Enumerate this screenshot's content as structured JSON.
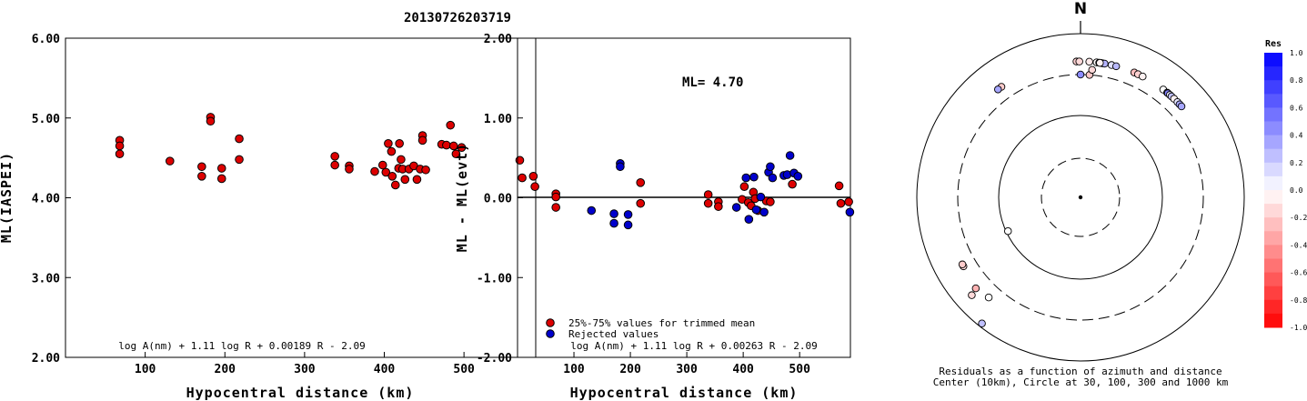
{
  "title": "20130726203719",
  "chart_data": [
    {
      "type": "scatter",
      "ylabel": "ML(IASPEI)",
      "xlabel": "Hypocentral distance (km)",
      "xlim": [
        0,
        590
      ],
      "ylim": [
        2.0,
        6.0
      ],
      "xticks": [
        "100",
        "200",
        "300",
        "400",
        "500"
      ],
      "xtick_values": [
        100,
        200,
        300,
        400,
        500
      ],
      "yticks": [
        "2.00",
        "3.00",
        "4.00",
        "5.00",
        "6.00"
      ],
      "ytick_values": [
        2.0,
        3.0,
        4.0,
        5.0,
        6.0
      ],
      "formula": "log A(nm) + 1.11 log R + 0.00189 R - 2.09",
      "color": "#dd0000",
      "points": [
        [
          68,
          4.72
        ],
        [
          68,
          4.65
        ],
        [
          68,
          4.55
        ],
        [
          131,
          4.46
        ],
        [
          171,
          4.39
        ],
        [
          171,
          4.27
        ],
        [
          182,
          5.01
        ],
        [
          182,
          4.96
        ],
        [
          196,
          4.37
        ],
        [
          196,
          4.24
        ],
        [
          218,
          4.74
        ],
        [
          218,
          4.48
        ],
        [
          338,
          4.52
        ],
        [
          338,
          4.41
        ],
        [
          356,
          4.4
        ],
        [
          356,
          4.36
        ],
        [
          388,
          4.33
        ],
        [
          398,
          4.41
        ],
        [
          402,
          4.32
        ],
        [
          405,
          4.68
        ],
        [
          409,
          4.58
        ],
        [
          410,
          4.27
        ],
        [
          414,
          4.16
        ],
        [
          418,
          4.37
        ],
        [
          419,
          4.68
        ],
        [
          421,
          4.48
        ],
        [
          423,
          4.36
        ],
        [
          426,
          4.23
        ],
        [
          431,
          4.36
        ],
        [
          437,
          4.4
        ],
        [
          441,
          4.23
        ],
        [
          445,
          4.36
        ],
        [
          448,
          4.78
        ],
        [
          448,
          4.72
        ],
        [
          452,
          4.35
        ],
        [
          472,
          4.67
        ],
        [
          478,
          4.66
        ],
        [
          483,
          4.91
        ],
        [
          487,
          4.65
        ],
        [
          490,
          4.55
        ],
        [
          497,
          4.63
        ],
        [
          570,
          4.47
        ],
        [
          573,
          4.25
        ],
        [
          587,
          4.27
        ],
        [
          589,
          4.14
        ]
      ]
    },
    {
      "type": "scatter",
      "ylabel": "ML - ML(evt)",
      "xlabel": "Hypocentral distance (km)",
      "xlim": [
        0,
        590
      ],
      "ylim": [
        -2.0,
        2.0
      ],
      "xticks": [
        "100",
        "200",
        "300",
        "400",
        "500"
      ],
      "xtick_values": [
        100,
        200,
        300,
        400,
        500
      ],
      "yticks": [
        "-2.00",
        "-1.00",
        "0.00",
        "1.00",
        "2.00"
      ],
      "ytick_values": [
        -2.0,
        -1.0,
        0.0,
        1.0,
        2.0
      ],
      "ml_label": "ML=  4.70",
      "formula": "log A(nm) + 1.11 log R + 0.00263 R - 2.09",
      "legend": [
        {
          "label": "25%-75% values for trimmed mean",
          "color": "#dd0000"
        },
        {
          "label": "Rejected values",
          "color": "#0000cc"
        }
      ],
      "trimmed": [
        [
          68,
          0.05
        ],
        [
          68,
          0.01
        ],
        [
          68,
          -0.12
        ],
        [
          218,
          0.19
        ],
        [
          218,
          -0.07
        ],
        [
          338,
          0.04
        ],
        [
          338,
          -0.07
        ],
        [
          356,
          -0.05
        ],
        [
          356,
          -0.11
        ],
        [
          398,
          -0.02
        ],
        [
          402,
          0.14
        ],
        [
          409,
          -0.06
        ],
        [
          414,
          -0.1
        ],
        [
          418,
          0.07
        ],
        [
          421,
          -0.01
        ],
        [
          426,
          -0.16
        ],
        [
          441,
          -0.04
        ],
        [
          448,
          -0.05
        ],
        [
          487,
          0.17
        ],
        [
          570,
          0.15
        ],
        [
          573,
          -0.07
        ],
        [
          587,
          -0.05
        ]
      ],
      "rejected": [
        [
          131,
          -0.16
        ],
        [
          171,
          -0.2
        ],
        [
          171,
          -0.32
        ],
        [
          182,
          0.43
        ],
        [
          182,
          0.39
        ],
        [
          196,
          -0.21
        ],
        [
          196,
          -0.34
        ],
        [
          388,
          -0.12
        ],
        [
          405,
          0.25
        ],
        [
          410,
          -0.27
        ],
        [
          419,
          0.26
        ],
        [
          423,
          -0.15
        ],
        [
          431,
          0.01
        ],
        [
          437,
          -0.18
        ],
        [
          445,
          0.32
        ],
        [
          448,
          0.39
        ],
        [
          452,
          0.25
        ],
        [
          472,
          0.28
        ],
        [
          478,
          0.29
        ],
        [
          483,
          0.53
        ],
        [
          490,
          0.31
        ],
        [
          497,
          0.27
        ],
        [
          589,
          -0.18
        ]
      ]
    },
    {
      "type": "scatter",
      "subtype": "polar",
      "north_label": "N",
      "caption_line1": "Residuals as a function of azimuth and distance",
      "caption_line2": "Center (10km), Circle at 30, 100, 300 and 1000 km",
      "colorbar_title": "Res",
      "colorbar_ticks": [
        "1.0",
        "0.8",
        "0.6",
        "0.4",
        "0.2",
        "0.0",
        "-0.2",
        "-0.4",
        "-0.6",
        "-0.8",
        "-1.0"
      ],
      "colorbar_values": [
        1.0,
        0.8,
        0.6,
        0.4,
        0.2,
        0.0,
        -0.2,
        -0.4,
        -0.6,
        -0.8,
        -1.0
      ],
      "points": [
        {
          "azimuth": 358.3,
          "distance": 1000,
          "residual": -0.18
        },
        {
          "azimuth": 359.5,
          "distance": 1000,
          "residual": -0.15
        },
        {
          "azimuth": 3.7,
          "distance": 1000,
          "residual": -0.08
        },
        {
          "azimuth": 6.8,
          "distance": 1000,
          "residual": -0.02
        },
        {
          "azimuth": 7.9,
          "distance": 1000,
          "residual": 0.2
        },
        {
          "azimuth": 8.6,
          "distance": 1000,
          "residual": 0.28
        },
        {
          "azimuth": 9.3,
          "distance": 1000,
          "residual": 0.25
        },
        {
          "azimuth": 10.2,
          "distance": 1000,
          "residual": 0.3
        },
        {
          "azimuth": 8.2,
          "distance": 1000,
          "residual": -0.05
        },
        {
          "azimuth": 13.2,
          "distance": 1000,
          "residual": 0.12
        },
        {
          "azimuth": 15.2,
          "distance": 1000,
          "residual": 0.28
        },
        {
          "azimuth": 0.0,
          "distance": 300,
          "residual": 0.45
        },
        {
          "azimuth": 4.2,
          "distance": 300,
          "residual": -0.22
        },
        {
          "azimuth": 5.2,
          "distance": 350,
          "residual": -0.15
        },
        {
          "azimuth": 23.3,
          "distance": 1000,
          "residual": -0.25
        },
        {
          "azimuth": 25.0,
          "distance": 1000,
          "residual": -0.18
        },
        {
          "azimuth": 27.2,
          "distance": 1000,
          "residual": -0.05
        },
        {
          "azimuth": 37.5,
          "distance": 1000,
          "residual": 0.0
        },
        {
          "azimuth": 39.6,
          "distance": 1000,
          "residual": 0.6
        },
        {
          "azimuth": 40.0,
          "distance": 1000,
          "residual": 0.5
        },
        {
          "azimuth": 41.1,
          "distance": 1000,
          "residual": 0.05
        },
        {
          "azimuth": 42.0,
          "distance": 1000,
          "residual": 0.25
        },
        {
          "azimuth": 43.5,
          "distance": 1000,
          "residual": -0.05
        },
        {
          "azimuth": 45.5,
          "distance": 1000,
          "residual": 0.1
        },
        {
          "azimuth": 46.8,
          "distance": 1000,
          "residual": 0.35
        },
        {
          "azimuth": 48.0,
          "distance": 1000,
          "residual": 0.35
        },
        {
          "azimuth": 324.4,
          "distance": 1000,
          "residual": -0.2
        },
        {
          "azimuth": 322.6,
          "distance": 1000,
          "residual": 0.35
        },
        {
          "azimuth": 239.5,
          "distance": 1000,
          "residual": -0.15
        },
        {
          "azimuth": 240.4,
          "distance": 1000,
          "residual": -0.2
        },
        {
          "azimuth": 229.0,
          "distance": 480,
          "residual": -0.3
        },
        {
          "azimuth": 228.0,
          "distance": 600,
          "residual": -0.15
        },
        {
          "azimuth": 222.5,
          "distance": 1000,
          "residual": 0.0
        },
        {
          "azimuth": 218.0,
          "distance": 900,
          "residual": 0.25
        },
        {
          "azimuth": 245.0,
          "distance": 95,
          "residual": 0.0
        }
      ]
    }
  ]
}
